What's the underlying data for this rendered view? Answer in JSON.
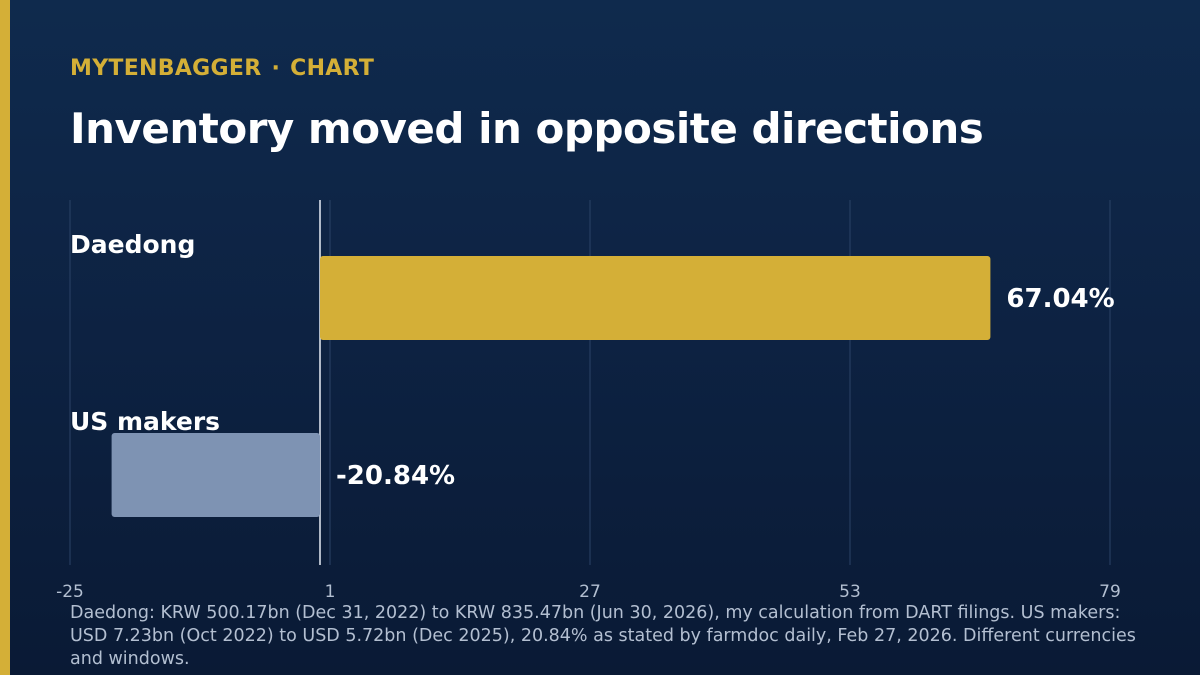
{
  "header": {
    "kicker_brand": "MYTENBAGGER",
    "kicker_separator": "·",
    "kicker_section": "CHART",
    "title": "Inventory moved in opposite directions"
  },
  "colors": {
    "accent": "#d4af37",
    "bar_primary": "#d4af37",
    "bar_secondary": "#7e93b3",
    "gridline": "#2b4266",
    "zero_line": "#e6ecf5"
  },
  "chart_data": {
    "type": "bar",
    "orientation": "horizontal",
    "categories": [
      "Daedong",
      "US makers"
    ],
    "values": [
      67.04,
      -20.84
    ],
    "value_labels": [
      "67.04%",
      "-20.84%"
    ],
    "xlim": [
      -25,
      79
    ],
    "xticks": [
      -25,
      1,
      27,
      53,
      79
    ],
    "xtick_labels": [
      "-25",
      "1",
      "27",
      "53",
      "79"
    ],
    "grid": true,
    "title": "Inventory moved in opposite directions",
    "xlabel": "",
    "ylabel": ""
  },
  "footer": {
    "source": "Daedong: KRW 500.17bn (Dec 31, 2022) to KRW 835.47bn (Jun 30, 2026), my calculation from DART filings. US makers: USD 7.23bn (Oct 2022) to USD 5.72bn (Dec 2025), 20.84% as stated by farmdoc daily, Feb 27, 2026. Different currencies and windows."
  }
}
